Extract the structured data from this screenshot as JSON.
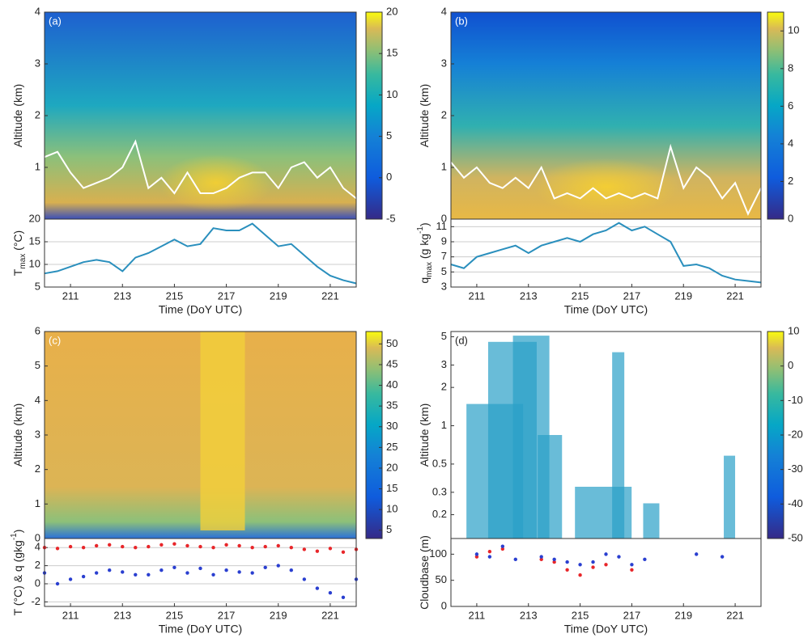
{
  "chart_data": [
    {
      "type": "heatmap",
      "label": "(a)",
      "ylabel": [
        {
          "text": "Altitude (km)"
        }
      ],
      "xlim": [
        210,
        222
      ],
      "ylim": [
        0,
        4
      ],
      "yticks": [
        1,
        2,
        3,
        4
      ],
      "colorbar": {
        "clim": [
          -5,
          20
        ],
        "cticks": [
          -5,
          0,
          5,
          10,
          15,
          20
        ]
      },
      "x": [
        210,
        210.5,
        211,
        211.5,
        212,
        212.5,
        213,
        213.5,
        214,
        214.5,
        215,
        215.5,
        216,
        216.5,
        217,
        217.5,
        218,
        218.5,
        219,
        219.5,
        220,
        220.5,
        221,
        221.5,
        222
      ],
      "series": [
        {
          "color": "#ffffff",
          "values": [
            1.2,
            1.3,
            0.9,
            0.6,
            0.7,
            0.8,
            1.0,
            1.5,
            0.6,
            0.8,
            0.5,
            0.9,
            0.5,
            0.5,
            0.6,
            0.8,
            0.9,
            0.9,
            0.6,
            1.0,
            1.1,
            0.8,
            1.0,
            0.6,
            0.4
          ]
        }
      ]
    },
    {
      "type": "line",
      "ylabel": [
        {
          "text": "T"
        },
        {
          "text": "max",
          "shift": "sub"
        },
        {
          "text": " (°C)"
        }
      ],
      "xlabel": "Time (DoY UTC)",
      "xlim": [
        210,
        222
      ],
      "xticks": [
        211,
        213,
        215,
        217,
        219,
        221
      ],
      "ylim": [
        5,
        20
      ],
      "yticks": [
        5,
        10,
        15,
        20
      ],
      "grid": true,
      "x": [
        210,
        210.5,
        211,
        211.5,
        212,
        212.5,
        213,
        213.5,
        214,
        214.5,
        215,
        215.5,
        216,
        216.5,
        217,
        217.5,
        218,
        218.5,
        219,
        219.5,
        220,
        220.5,
        221,
        221.5,
        222
      ],
      "series": [
        {
          "color": "#2a8fbd",
          "values": [
            8,
            8.5,
            9.5,
            10.5,
            11,
            10.5,
            8.5,
            11.5,
            12.5,
            14,
            15.5,
            14,
            14.5,
            18,
            17.5,
            17.5,
            19,
            16.5,
            14,
            14.5,
            12,
            9.5,
            7.5,
            6.5,
            5.8
          ]
        }
      ]
    },
    {
      "type": "heatmap",
      "label": "(b)",
      "ylabel": [
        {
          "text": "Altitude (km)"
        }
      ],
      "xlim": [
        210,
        222
      ],
      "ylim": [
        0,
        4
      ],
      "yticks": [
        0,
        1,
        2,
        3,
        4
      ],
      "colorbar": {
        "clim": [
          0,
          11
        ],
        "cticks": [
          0,
          2,
          4,
          6,
          8,
          10
        ]
      },
      "x": [
        210,
        210.5,
        211,
        211.5,
        212,
        212.5,
        213,
        213.5,
        214,
        214.5,
        215,
        215.5,
        216,
        216.5,
        217,
        217.5,
        218,
        218.5,
        219,
        219.5,
        220,
        220.5,
        221,
        221.5,
        222
      ],
      "series": [
        {
          "color": "#ffffff",
          "values": [
            1.1,
            0.8,
            1.0,
            0.7,
            0.6,
            0.8,
            0.6,
            1.0,
            0.4,
            0.5,
            0.4,
            0.6,
            0.4,
            0.5,
            0.4,
            0.5,
            0.4,
            1.4,
            0.6,
            1.0,
            0.8,
            0.4,
            0.7,
            0.1,
            0.6
          ]
        }
      ]
    },
    {
      "type": "line",
      "ylabel": [
        {
          "text": "q"
        },
        {
          "text": "max",
          "shift": "sub"
        },
        {
          "text": " (g kg"
        },
        {
          "text": "-1",
          "shift": "super"
        },
        {
          "text": ")"
        }
      ],
      "xlabel": "Time (DoY UTC)",
      "xlim": [
        210,
        222
      ],
      "xticks": [
        211,
        213,
        215,
        217,
        219,
        221
      ],
      "ylim": [
        3,
        12
      ],
      "yticks": [
        3,
        5,
        7,
        9,
        11
      ],
      "grid": true,
      "x": [
        210,
        210.5,
        211,
        211.5,
        212,
        212.5,
        213,
        213.5,
        214,
        214.5,
        215,
        215.5,
        216,
        216.5,
        217,
        217.5,
        218,
        218.5,
        219,
        219.5,
        220,
        220.5,
        221,
        221.5,
        222
      ],
      "series": [
        {
          "color": "#2a8fbd",
          "values": [
            6,
            5.5,
            7,
            7.5,
            8,
            8.5,
            7.5,
            8.5,
            9,
            9.5,
            9,
            10,
            10.5,
            11.5,
            10.5,
            11,
            10,
            9,
            5.8,
            6,
            5.5,
            4.5,
            4,
            3.8,
            3.6
          ]
        }
      ]
    },
    {
      "type": "heatmap",
      "label": "(c)",
      "ylabel": [
        {
          "text": "Altitude (km)"
        }
      ],
      "xlim": [
        210,
        222
      ],
      "ylim": [
        0,
        6
      ],
      "yticks": [
        0,
        1,
        2,
        3,
        4,
        5,
        6
      ],
      "colorbar": {
        "clim": [
          3,
          53
        ],
        "cticks": [
          5,
          10,
          15,
          20,
          25,
          30,
          35,
          40,
          45,
          50
        ]
      }
    },
    {
      "type": "scatter",
      "ylabel": [
        {
          "text": "T (°C) & q (gkg"
        },
        {
          "text": "-1",
          "shift": "super"
        },
        {
          "text": ")"
        }
      ],
      "xlabel": "Time (DoY UTC)",
      "xlim": [
        210,
        222
      ],
      "xticks": [
        211,
        213,
        215,
        217,
        219,
        221
      ],
      "ylim": [
        -2.5,
        5
      ],
      "yticks": [
        -2,
        0,
        2,
        4
      ],
      "grid": true,
      "x": [
        210,
        210.5,
        211,
        211.5,
        212,
        212.5,
        213,
        213.5,
        214,
        214.5,
        215,
        215.5,
        216,
        216.5,
        217,
        217.5,
        218,
        218.5,
        219,
        219.5,
        220,
        220.5,
        221,
        221.5,
        222
      ],
      "series": [
        {
          "color": "#e8262a",
          "values": [
            4.0,
            3.9,
            4.1,
            4.0,
            4.2,
            4.3,
            4.1,
            4.0,
            4.1,
            4.3,
            4.4,
            4.2,
            4.1,
            4.0,
            4.3,
            4.2,
            4.0,
            4.1,
            4.2,
            4.0,
            3.8,
            3.6,
            3.9,
            3.5,
            3.8
          ]
        },
        {
          "color": "#2a3fd0",
          "values": [
            1.2,
            0,
            0.5,
            0.8,
            1.2,
            1.5,
            1.3,
            1.0,
            1.0,
            1.5,
            1.8,
            1.2,
            1.7,
            1.0,
            1.5,
            1.3,
            1.2,
            1.8,
            2.0,
            1.5,
            0.5,
            -0.5,
            -1.0,
            -1.5,
            0.5
          ]
        }
      ]
    },
    {
      "type": "heatmap",
      "label": "(d)",
      "ylabel": [
        {
          "text": "Altitude (km)"
        }
      ],
      "xlim": [
        210,
        222
      ],
      "ylim": [
        0.13,
        5.5
      ],
      "ylog": true,
      "yticks": [
        0.2,
        0.3,
        0.5,
        1,
        2,
        3,
        5
      ],
      "colorbar": {
        "clim": [
          -50,
          10
        ],
        "cticks": [
          -50,
          -40,
          -30,
          -20,
          -10,
          0,
          10
        ]
      }
    },
    {
      "type": "scatter",
      "ylabel": [
        {
          "text": "Cloudbase (m)"
        }
      ],
      "xlabel": "Time (DoY UTC)",
      "xlim": [
        210,
        222
      ],
      "xticks": [
        211,
        213,
        215,
        217,
        219,
        221
      ],
      "ylim": [
        0,
        130
      ],
      "yticks": [
        0,
        50,
        100
      ],
      "grid": false,
      "x": [
        210,
        210.5,
        211,
        211.5,
        212,
        212.5,
        213,
        213.5,
        214,
        214.5,
        215,
        215.5,
        216,
        216.5,
        217,
        217.5,
        218,
        218.5,
        219,
        219.5,
        220,
        220.5,
        221,
        221.5,
        222
      ],
      "series": [
        {
          "color": "#e8262a",
          "values": [
            null,
            null,
            95,
            105,
            110,
            null,
            null,
            90,
            85,
            70,
            60,
            75,
            80,
            null,
            70,
            null,
            null,
            null,
            null,
            null,
            null,
            null,
            null,
            null,
            null
          ]
        },
        {
          "color": "#2a3fd0",
          "values": [
            null,
            null,
            100,
            95,
            115,
            90,
            null,
            95,
            90,
            85,
            80,
            85,
            100,
            95,
            80,
            90,
            null,
            null,
            null,
            100,
            null,
            95,
            null,
            null,
            null
          ]
        }
      ]
    }
  ]
}
